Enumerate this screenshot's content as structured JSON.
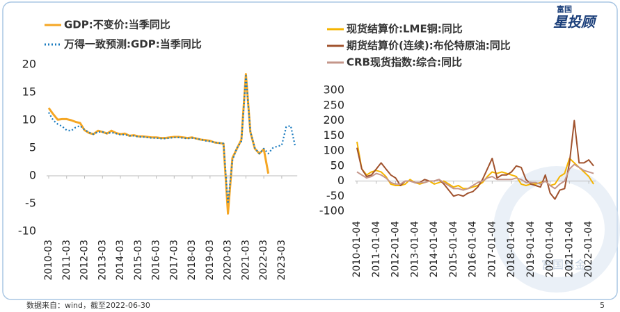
{
  "logo": {
    "top": "富国",
    "main": "星投顾"
  },
  "watermark": "富国基金",
  "footnote": "数据来自：wind，截至2022-06-30",
  "page_number": "5",
  "chart_data": [
    {
      "type": "line",
      "categories": [
        "2010-03",
        null,
        null,
        null,
        "2011-03",
        null,
        null,
        null,
        "2012-03",
        null,
        null,
        null,
        "2013-03",
        null,
        null,
        null,
        "2014-03",
        null,
        null,
        null,
        "2015-03",
        null,
        null,
        null,
        "2016-03",
        null,
        null,
        null,
        "2017-03",
        null,
        null,
        null,
        "2018-03",
        null,
        null,
        null,
        "2019-03",
        null,
        null,
        null,
        "2020-03",
        null,
        null,
        null,
        "2021-03",
        null,
        null,
        null,
        "2022-03",
        null,
        null,
        null,
        "2023-03",
        null,
        null,
        null
      ],
      "series": [
        {
          "name": "GDP:不变价:当季同比",
          "color": "#f5a623",
          "style": "solid",
          "values": [
            12.2,
            11.1,
            10.1,
            10.2,
            10.2,
            10.0,
            9.7,
            9.5,
            8.2,
            7.7,
            7.5,
            8.1,
            7.9,
            7.6,
            8.1,
            7.7,
            7.5,
            7.6,
            7.2,
            7.3,
            7.1,
            7.1,
            7.0,
            6.9,
            6.9,
            6.8,
            6.8,
            6.9,
            7.0,
            7.0,
            6.9,
            6.8,
            6.9,
            6.7,
            6.5,
            6.4,
            6.3,
            6.0,
            5.9,
            5.8,
            -6.8,
            3.2,
            4.9,
            6.5,
            18.3,
            7.9,
            4.9,
            4.0,
            4.8,
            0.4,
            null,
            null,
            null,
            null,
            null,
            null
          ]
        },
        {
          "name": "万得一致预测:GDP:当季同比",
          "color": "#1a7bbf",
          "style": "dotted",
          "values": [
            11.4,
            10.0,
            9.3,
            8.9,
            8.2,
            8.1,
            8.7,
            9.0,
            8.3,
            7.8,
            7.5,
            7.9,
            7.9,
            7.6,
            7.8,
            7.6,
            7.4,
            7.4,
            7.2,
            7.2,
            7.0,
            7.0,
            6.9,
            6.8,
            6.8,
            6.7,
            6.7,
            6.8,
            6.9,
            6.9,
            6.8,
            6.7,
            6.8,
            6.7,
            6.5,
            6.3,
            6.2,
            6.0,
            5.9,
            5.8,
            -5.0,
            2.8,
            5.0,
            6.2,
            18.0,
            8.0,
            5.0,
            4.0,
            4.9,
            4.0,
            5.0,
            5.3,
            5.5,
            8.8,
            9.0,
            5.3
          ]
        }
      ],
      "ylim": [
        -10,
        20
      ],
      "yticks": [
        -10,
        -5,
        0,
        5,
        10,
        15,
        20
      ]
    },
    {
      "type": "line",
      "categories": [
        "2010-01-04",
        null,
        null,
        null,
        "2011-01-04",
        null,
        null,
        null,
        "2012-01-04",
        null,
        null,
        null,
        "2013-01-04",
        null,
        null,
        null,
        "2014-01-04",
        null,
        null,
        null,
        "2015-01-04",
        null,
        null,
        null,
        "2016-01-04",
        null,
        null,
        null,
        "2017-01-04",
        null,
        null,
        null,
        "2018-01-04",
        null,
        null,
        null,
        "2019-01-04",
        null,
        null,
        null,
        "2020-01-04",
        null,
        null,
        null,
        "2021-01-04",
        null,
        null,
        null,
        "2022-01-04",
        null
      ],
      "series": [
        {
          "name": "现货结算价:LME铜:同比",
          "color": "#f5b400",
          "values": [
            130,
            40,
            20,
            30,
            35,
            30,
            15,
            -10,
            -15,
            -15,
            -10,
            5,
            -5,
            -10,
            -5,
            0,
            -10,
            -5,
            0,
            -10,
            -20,
            -15,
            -25,
            -25,
            -20,
            -15,
            -5,
            15,
            30,
            25,
            30,
            25,
            20,
            15,
            -10,
            -15,
            -10,
            -10,
            -5,
            0,
            -15,
            -10,
            15,
            25,
            75,
            60,
            45,
            30,
            15,
            -10
          ]
        },
        {
          "name": "期货结算价(连续):布伦特原油:同比",
          "color": "#a0522d",
          "values": [
            110,
            40,
            15,
            20,
            40,
            60,
            40,
            20,
            10,
            -15,
            0,
            0,
            -5,
            -5,
            5,
            0,
            0,
            5,
            -10,
            -30,
            -50,
            -45,
            -50,
            -40,
            -35,
            -20,
            5,
            40,
            75,
            10,
            20,
            20,
            30,
            50,
            45,
            5,
            -10,
            -15,
            -20,
            20,
            -40,
            -60,
            -30,
            -25,
            60,
            200,
            60,
            60,
            70,
            50
          ]
        },
        {
          "name": "CRB现货指数:综合:同比",
          "color": "#c4968a",
          "values": [
            30,
            20,
            10,
            15,
            25,
            20,
            10,
            -5,
            -10,
            -10,
            0,
            0,
            -5,
            -5,
            -5,
            0,
            0,
            5,
            -5,
            -15,
            -25,
            -25,
            -30,
            -25,
            -15,
            -5,
            0,
            10,
            15,
            5,
            5,
            5,
            5,
            10,
            5,
            -5,
            -5,
            -5,
            -10,
            0,
            -15,
            -25,
            -10,
            0,
            40,
            55,
            45,
            35,
            30,
            25
          ]
        }
      ],
      "ylim": [
        -100,
        300
      ],
      "yticks": [
        -100,
        -50,
        0,
        50,
        100,
        150,
        200,
        250,
        300
      ]
    }
  ]
}
